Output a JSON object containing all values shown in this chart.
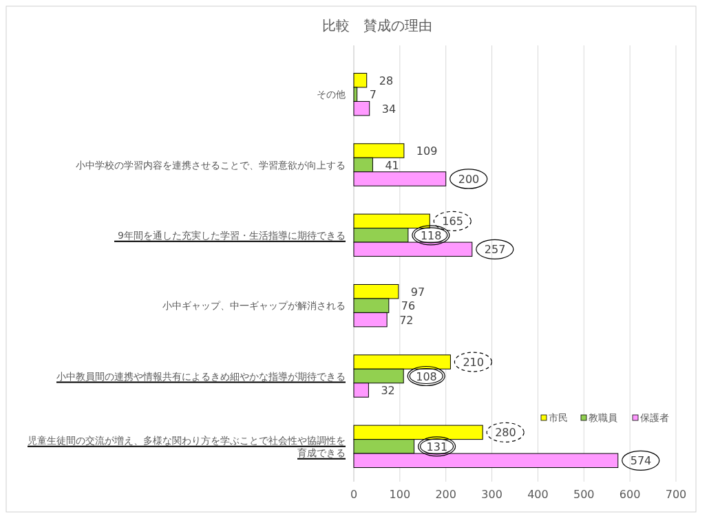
{
  "chart_data": {
    "type": "bar",
    "orientation": "horizontal",
    "title": "比較　賛成の理由",
    "categories": [
      "その他",
      "小中学校の学習内容を連携させることで、学習意欲が向上する",
      "9年間を通した充実した学習・生活指導に期待できる",
      "小中ギャップ、中一ギャップが解消される",
      "小中教員間の連携や情報共有によるきめ細やかな指導が期待できる",
      "児童生徒間の交流が増え、多様な関わり方を学ぶことで社会性や協調性を育成できる"
    ],
    "series": [
      {
        "name": "市民",
        "color": "#ffff00",
        "values": [
          28,
          109,
          165,
          97,
          210,
          280
        ]
      },
      {
        "name": "教職員",
        "color": "#92d050",
        "values": [
          7,
          41,
          118,
          76,
          108,
          131
        ]
      },
      {
        "name": "保護者",
        "color": "#ff99ff",
        "values": [
          34,
          200,
          257,
          72,
          32,
          574
        ]
      }
    ],
    "xlim": [
      0,
      700
    ],
    "xticks": [
      0,
      100,
      200,
      300,
      400,
      500,
      600,
      700
    ],
    "grid": "x",
    "legend": "bottom right",
    "data_labels": true
  }
}
